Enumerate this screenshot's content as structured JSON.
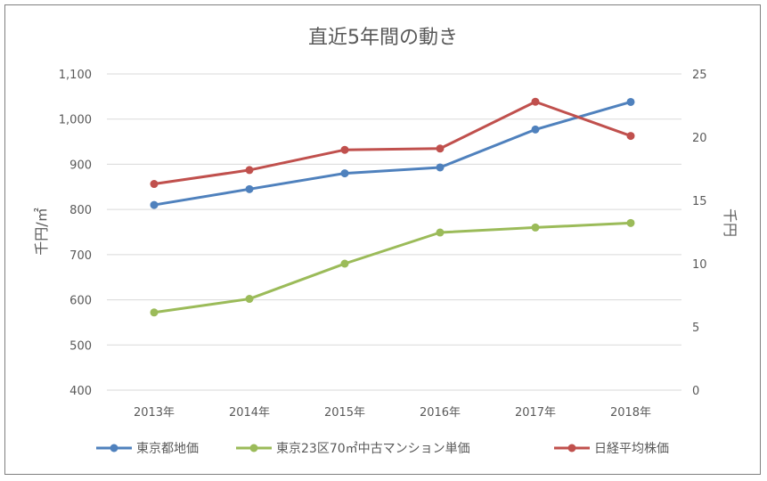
{
  "chart_data": {
    "type": "line",
    "title": "直近5年間の動き",
    "categories": [
      "2013年",
      "2014年",
      "2015年",
      "2016年",
      "2017年",
      "2018年"
    ],
    "y_left": {
      "label": "千円/㎡",
      "range": [
        400,
        1100
      ],
      "ticks": [
        "1,100",
        "1,000",
        "900",
        "800",
        "700",
        "600",
        "500",
        "400"
      ]
    },
    "y_right": {
      "label": "千円",
      "range": [
        0,
        25
      ],
      "ticks": [
        "25",
        "20",
        "15",
        "10",
        "5",
        "0"
      ]
    },
    "grid": true,
    "legend_position": "bottom",
    "series": [
      {
        "name": "東京都地価",
        "axis": "left",
        "color": "#4f81bd",
        "values": [
          810,
          845,
          880,
          893,
          977,
          1038
        ]
      },
      {
        "name": "東京23区70㎡中古マンション単価",
        "axis": "left",
        "color": "#9bbb59",
        "values": [
          572,
          602,
          680,
          749,
          760,
          770
        ]
      },
      {
        "name": "日経平均株価",
        "axis": "right",
        "color": "#c0504d",
        "values": [
          16.3,
          17.4,
          19.0,
          19.1,
          22.8,
          20.1
        ]
      }
    ]
  }
}
